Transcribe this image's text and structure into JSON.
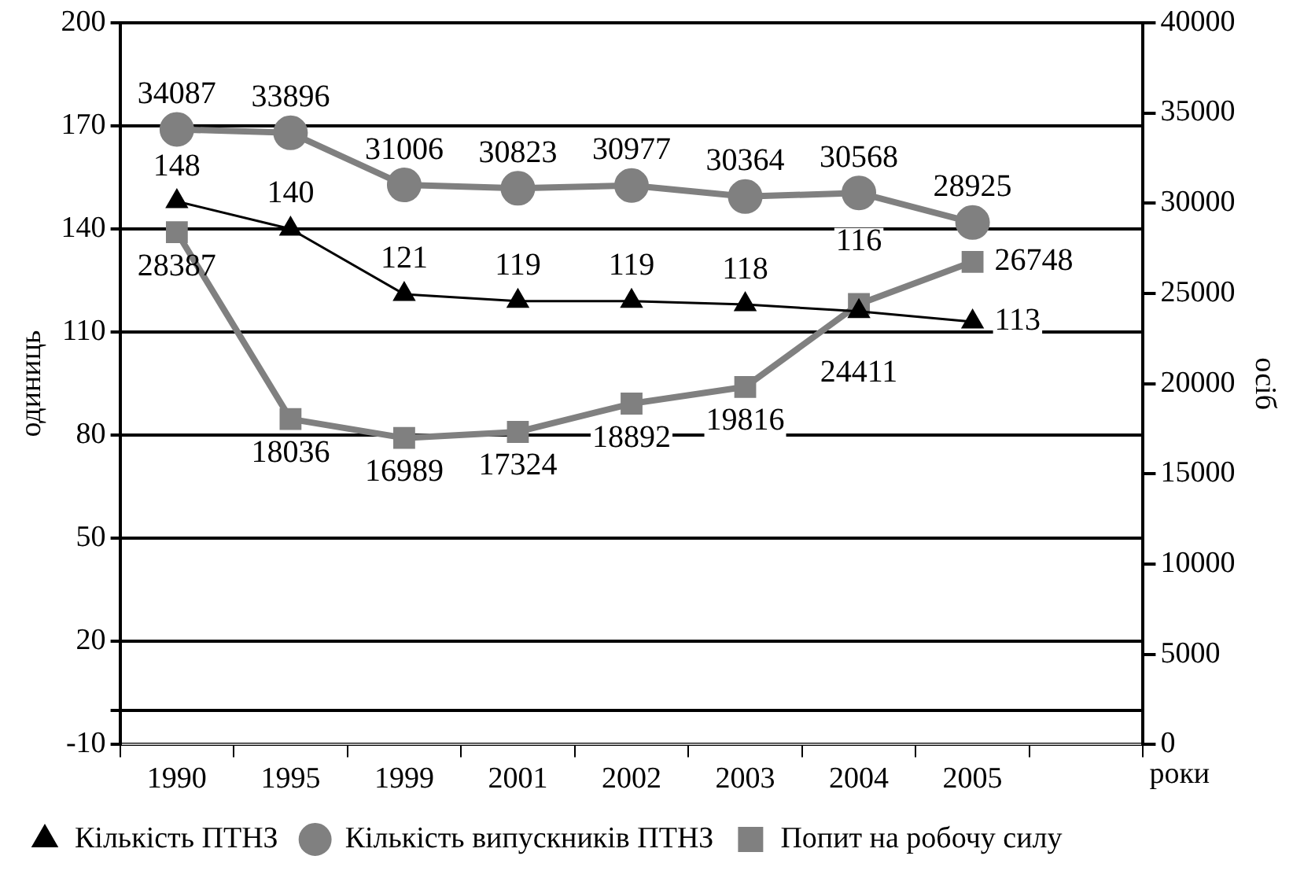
{
  "chart_data": {
    "type": "line",
    "xlabel": "роки",
    "ylabel": "одиниць",
    "y2label": "осіб",
    "categories": [
      "1990",
      "1995",
      "1999",
      "2001",
      "2002",
      "2003",
      "2004",
      "2005",
      null
    ],
    "series": [
      {
        "name": "Кількість ПТНЗ",
        "color": "#000000",
        "marker": "triangle",
        "values": [
          148,
          140,
          121,
          119,
          119,
          118,
          116,
          113,
          null
        ]
      },
      {
        "name": "Кількість випускників ПТНЗ",
        "color": "#808080",
        "marker": "circle",
        "axis": "y2",
        "values": [
          34087,
          33896,
          31006,
          30823,
          30977,
          30364,
          30568,
          28925,
          null
        ]
      },
      {
        "name": "Попит на робочу силу",
        "color": "#808080",
        "marker": "square",
        "axis": "y2",
        "values": [
          28387,
          18036,
          16989,
          17324,
          18892,
          19816,
          24411,
          26748,
          null
        ]
      }
    ],
    "data_labels": true,
    "ylim": [
      -10,
      200
    ],
    "yticks": [
      -10,
      {
        "value": 0,
        "label": null
      },
      20,
      50,
      80,
      110,
      140,
      170,
      200
    ],
    "y2lim": [
      0,
      40000
    ],
    "y2ticks": [
      0,
      5000,
      10000,
      15000,
      20000,
      25000,
      30000,
      35000,
      40000
    ],
    "grid": "y",
    "legend": "bottom"
  }
}
